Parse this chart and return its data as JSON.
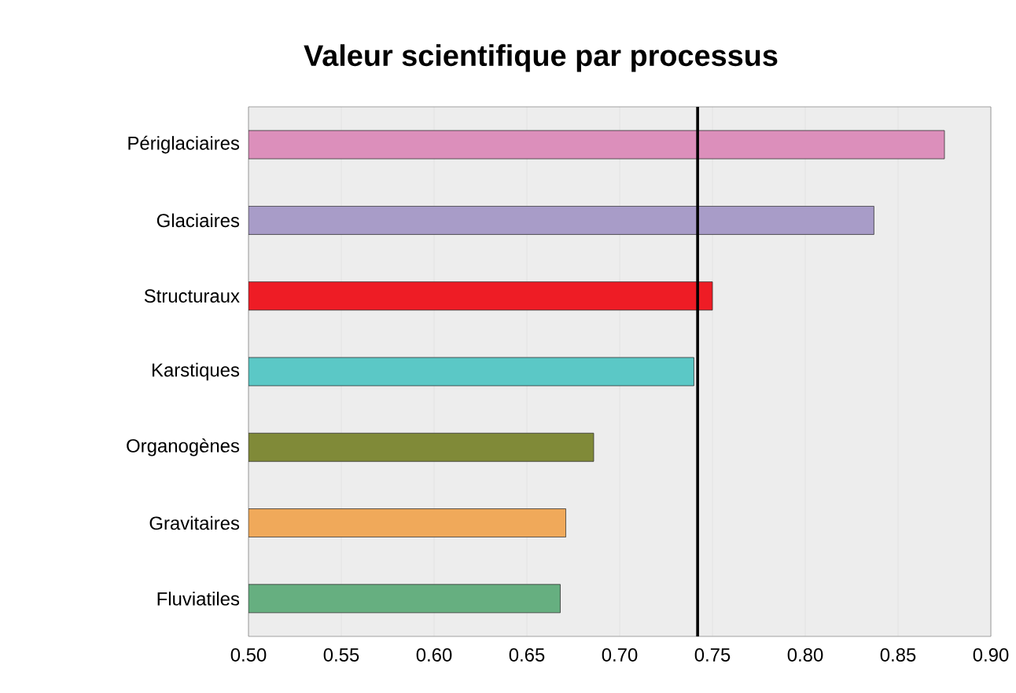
{
  "chart_data": {
    "type": "bar",
    "orientation": "horizontal",
    "title": "Valeur scientifique par processus",
    "categories": [
      "Périglaciaires",
      "Glaciaires",
      "Structuraux",
      "Karstiques",
      "Organogènes",
      "Gravitaires",
      "Fluviatiles"
    ],
    "values": [
      0.875,
      0.837,
      0.75,
      0.74,
      0.686,
      0.671,
      0.668
    ],
    "colors": [
      "#dc8fbb",
      "#a89cc8",
      "#ee1c25",
      "#5bc8c6",
      "#808a38",
      "#f0a95a",
      "#66af80"
    ],
    "xlim": [
      0.5,
      0.9
    ],
    "xticks": [
      {
        "value": 0.5,
        "label": "0.50"
      },
      {
        "value": 0.55,
        "label": "0.55"
      },
      {
        "value": 0.6,
        "label": "0.60"
      },
      {
        "value": 0.65,
        "label": "0.65"
      },
      {
        "value": 0.7,
        "label": "0.70"
      },
      {
        "value": 0.75,
        "label": "0.75"
      },
      {
        "value": 0.8,
        "label": "0.80"
      },
      {
        "value": 0.85,
        "label": "0.85"
      },
      {
        "value": 0.9,
        "label": "0.90"
      }
    ],
    "grid": "x",
    "ref_lines": [
      {
        "axis": "x",
        "value": 0.742,
        "color": "#000000"
      }
    ]
  }
}
